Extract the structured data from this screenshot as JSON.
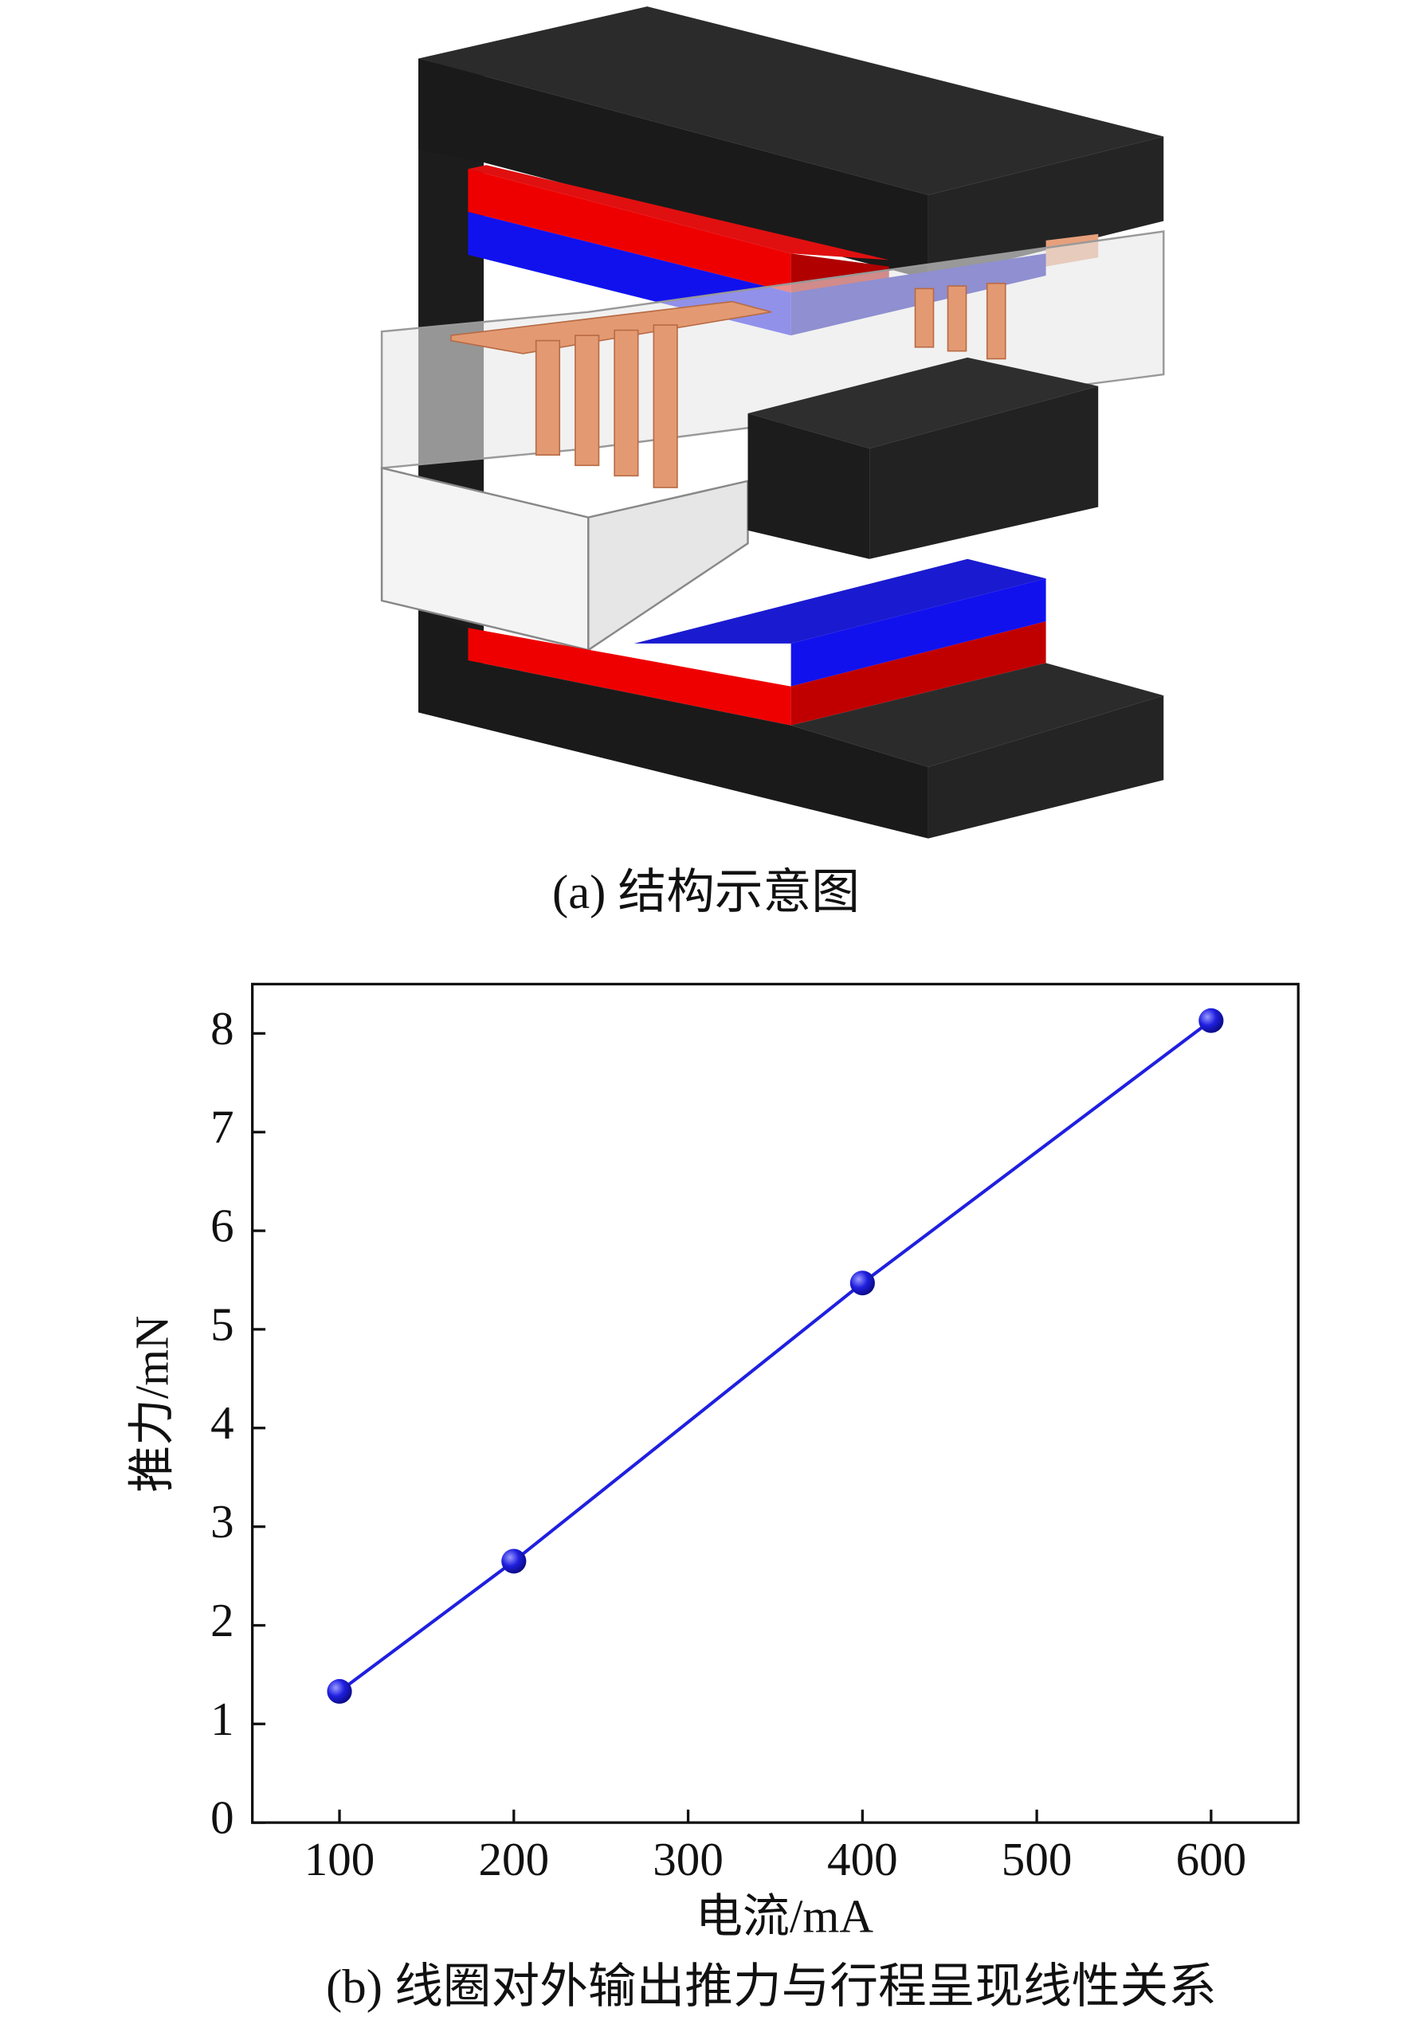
{
  "figure_a": {
    "caption": "(a) 结构示意图"
  },
  "chart_data": {
    "type": "line",
    "x_label": "电流/mA",
    "y_label": "推力/mN",
    "x": [
      100,
      200,
      400,
      600
    ],
    "values": [
      1.33,
      2.65,
      5.47,
      8.13
    ],
    "color": "#1f1fe0",
    "xlim": [
      50,
      650
    ],
    "xticks": [
      100,
      200,
      300,
      400,
      500,
      600
    ],
    "ylim": [
      0,
      8.5
    ],
    "yticks": [
      0,
      1,
      2,
      3,
      4,
      5,
      6,
      7,
      8
    ],
    "grid": false,
    "caption": "(b) 线圈对外输出推力与行程呈现线性关系"
  }
}
